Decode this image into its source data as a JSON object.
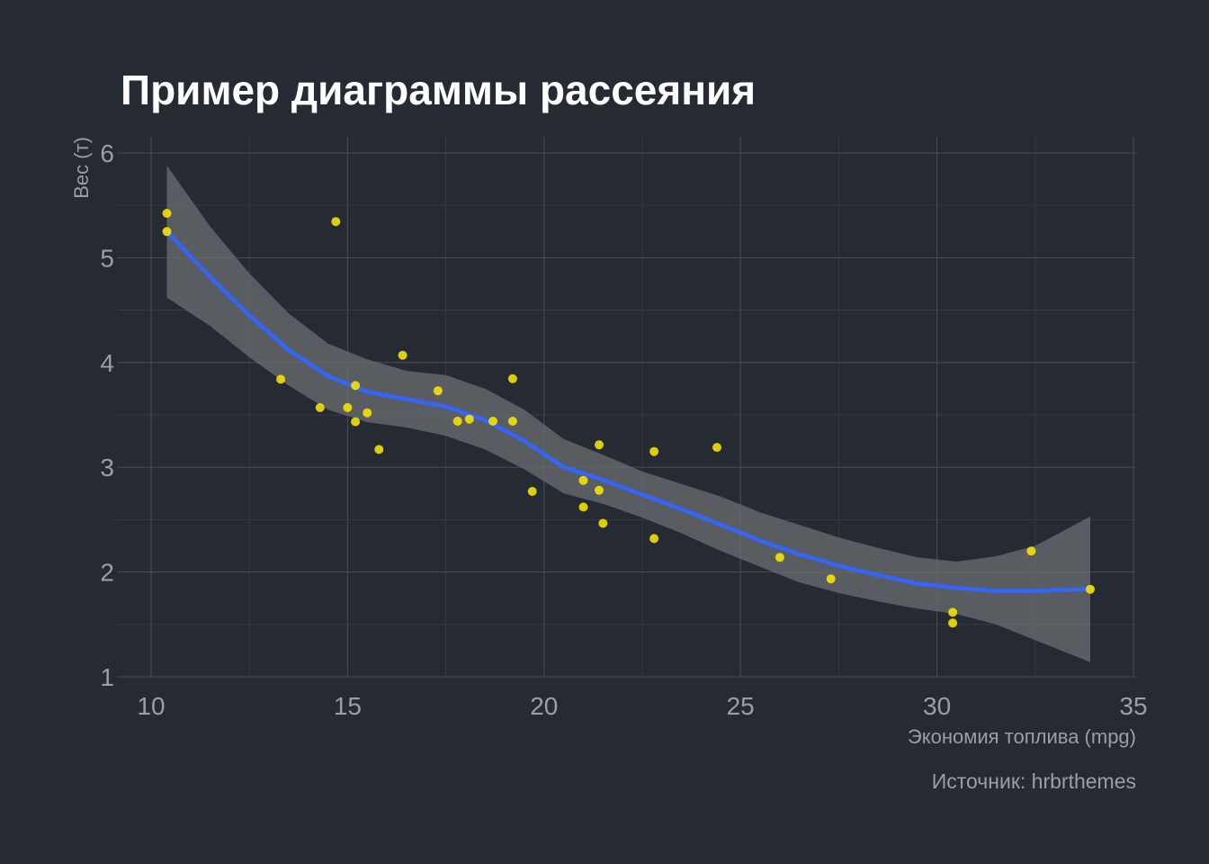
{
  "chart_data": {
    "type": "scatter",
    "title": "Пример диаграммы рассеяния",
    "xlabel": "Экономия топлива (mpg)",
    "ylabel": "Вес (т)",
    "caption": "Источник: hrbrthemes",
    "xlim": [
      10,
      35
    ],
    "ylim": [
      1,
      6
    ],
    "x_ticks": [
      "10",
      "15",
      "20",
      "25",
      "30",
      "35"
    ],
    "y_ticks": [
      "1",
      "2",
      "3",
      "4",
      "5",
      "6"
    ],
    "grid": true,
    "colors": {
      "background": "#252a33",
      "points": "#ffea00",
      "smooth_line": "#3366ff",
      "confidence_band": "#6b6d70"
    },
    "points": {
      "x": [
        21.0,
        21.0,
        22.8,
        21.4,
        18.7,
        18.1,
        14.3,
        24.4,
        22.8,
        19.2,
        17.8,
        16.4,
        17.3,
        15.2,
        10.4,
        10.4,
        14.7,
        32.4,
        30.4,
        33.9,
        21.5,
        15.5,
        15.2,
        13.3,
        19.2,
        27.3,
        26.0,
        30.4,
        15.8,
        19.7,
        15.0,
        21.4
      ],
      "y": [
        2.62,
        2.875,
        2.32,
        3.215,
        3.44,
        3.46,
        3.57,
        3.19,
        3.15,
        3.44,
        3.44,
        4.07,
        3.73,
        3.78,
        5.25,
        5.424,
        5.345,
        2.2,
        1.615,
        1.835,
        2.465,
        3.52,
        3.435,
        3.84,
        3.845,
        1.935,
        2.14,
        1.513,
        3.17,
        2.77,
        3.57,
        2.78
      ]
    },
    "smooth": {
      "method": "loess",
      "x": [
        10.4,
        11.5,
        12.5,
        13.5,
        14.5,
        15.5,
        16.5,
        17.5,
        18.5,
        19.5,
        20.5,
        21.5,
        22.5,
        23.5,
        24.5,
        25.5,
        26.5,
        27.5,
        28.5,
        29.5,
        30.5,
        31.5,
        32.5,
        33.9
      ],
      "fit": [
        5.25,
        4.82,
        4.45,
        4.12,
        3.87,
        3.72,
        3.65,
        3.58,
        3.45,
        3.25,
        3.0,
        2.88,
        2.74,
        2.6,
        2.45,
        2.3,
        2.17,
        2.06,
        1.97,
        1.89,
        1.85,
        1.82,
        1.82,
        1.84
      ],
      "lower": [
        4.62,
        4.35,
        4.05,
        3.78,
        3.55,
        3.43,
        3.38,
        3.3,
        3.17,
        2.98,
        2.75,
        2.65,
        2.52,
        2.37,
        2.2,
        2.05,
        1.9,
        1.8,
        1.72,
        1.65,
        1.6,
        1.5,
        1.35,
        1.14
      ],
      "upper": [
        5.88,
        5.3,
        4.85,
        4.47,
        4.18,
        4.03,
        3.92,
        3.88,
        3.75,
        3.55,
        3.27,
        3.12,
        2.96,
        2.84,
        2.72,
        2.57,
        2.45,
        2.33,
        2.23,
        2.14,
        2.1,
        2.15,
        2.25,
        2.53
      ]
    }
  }
}
